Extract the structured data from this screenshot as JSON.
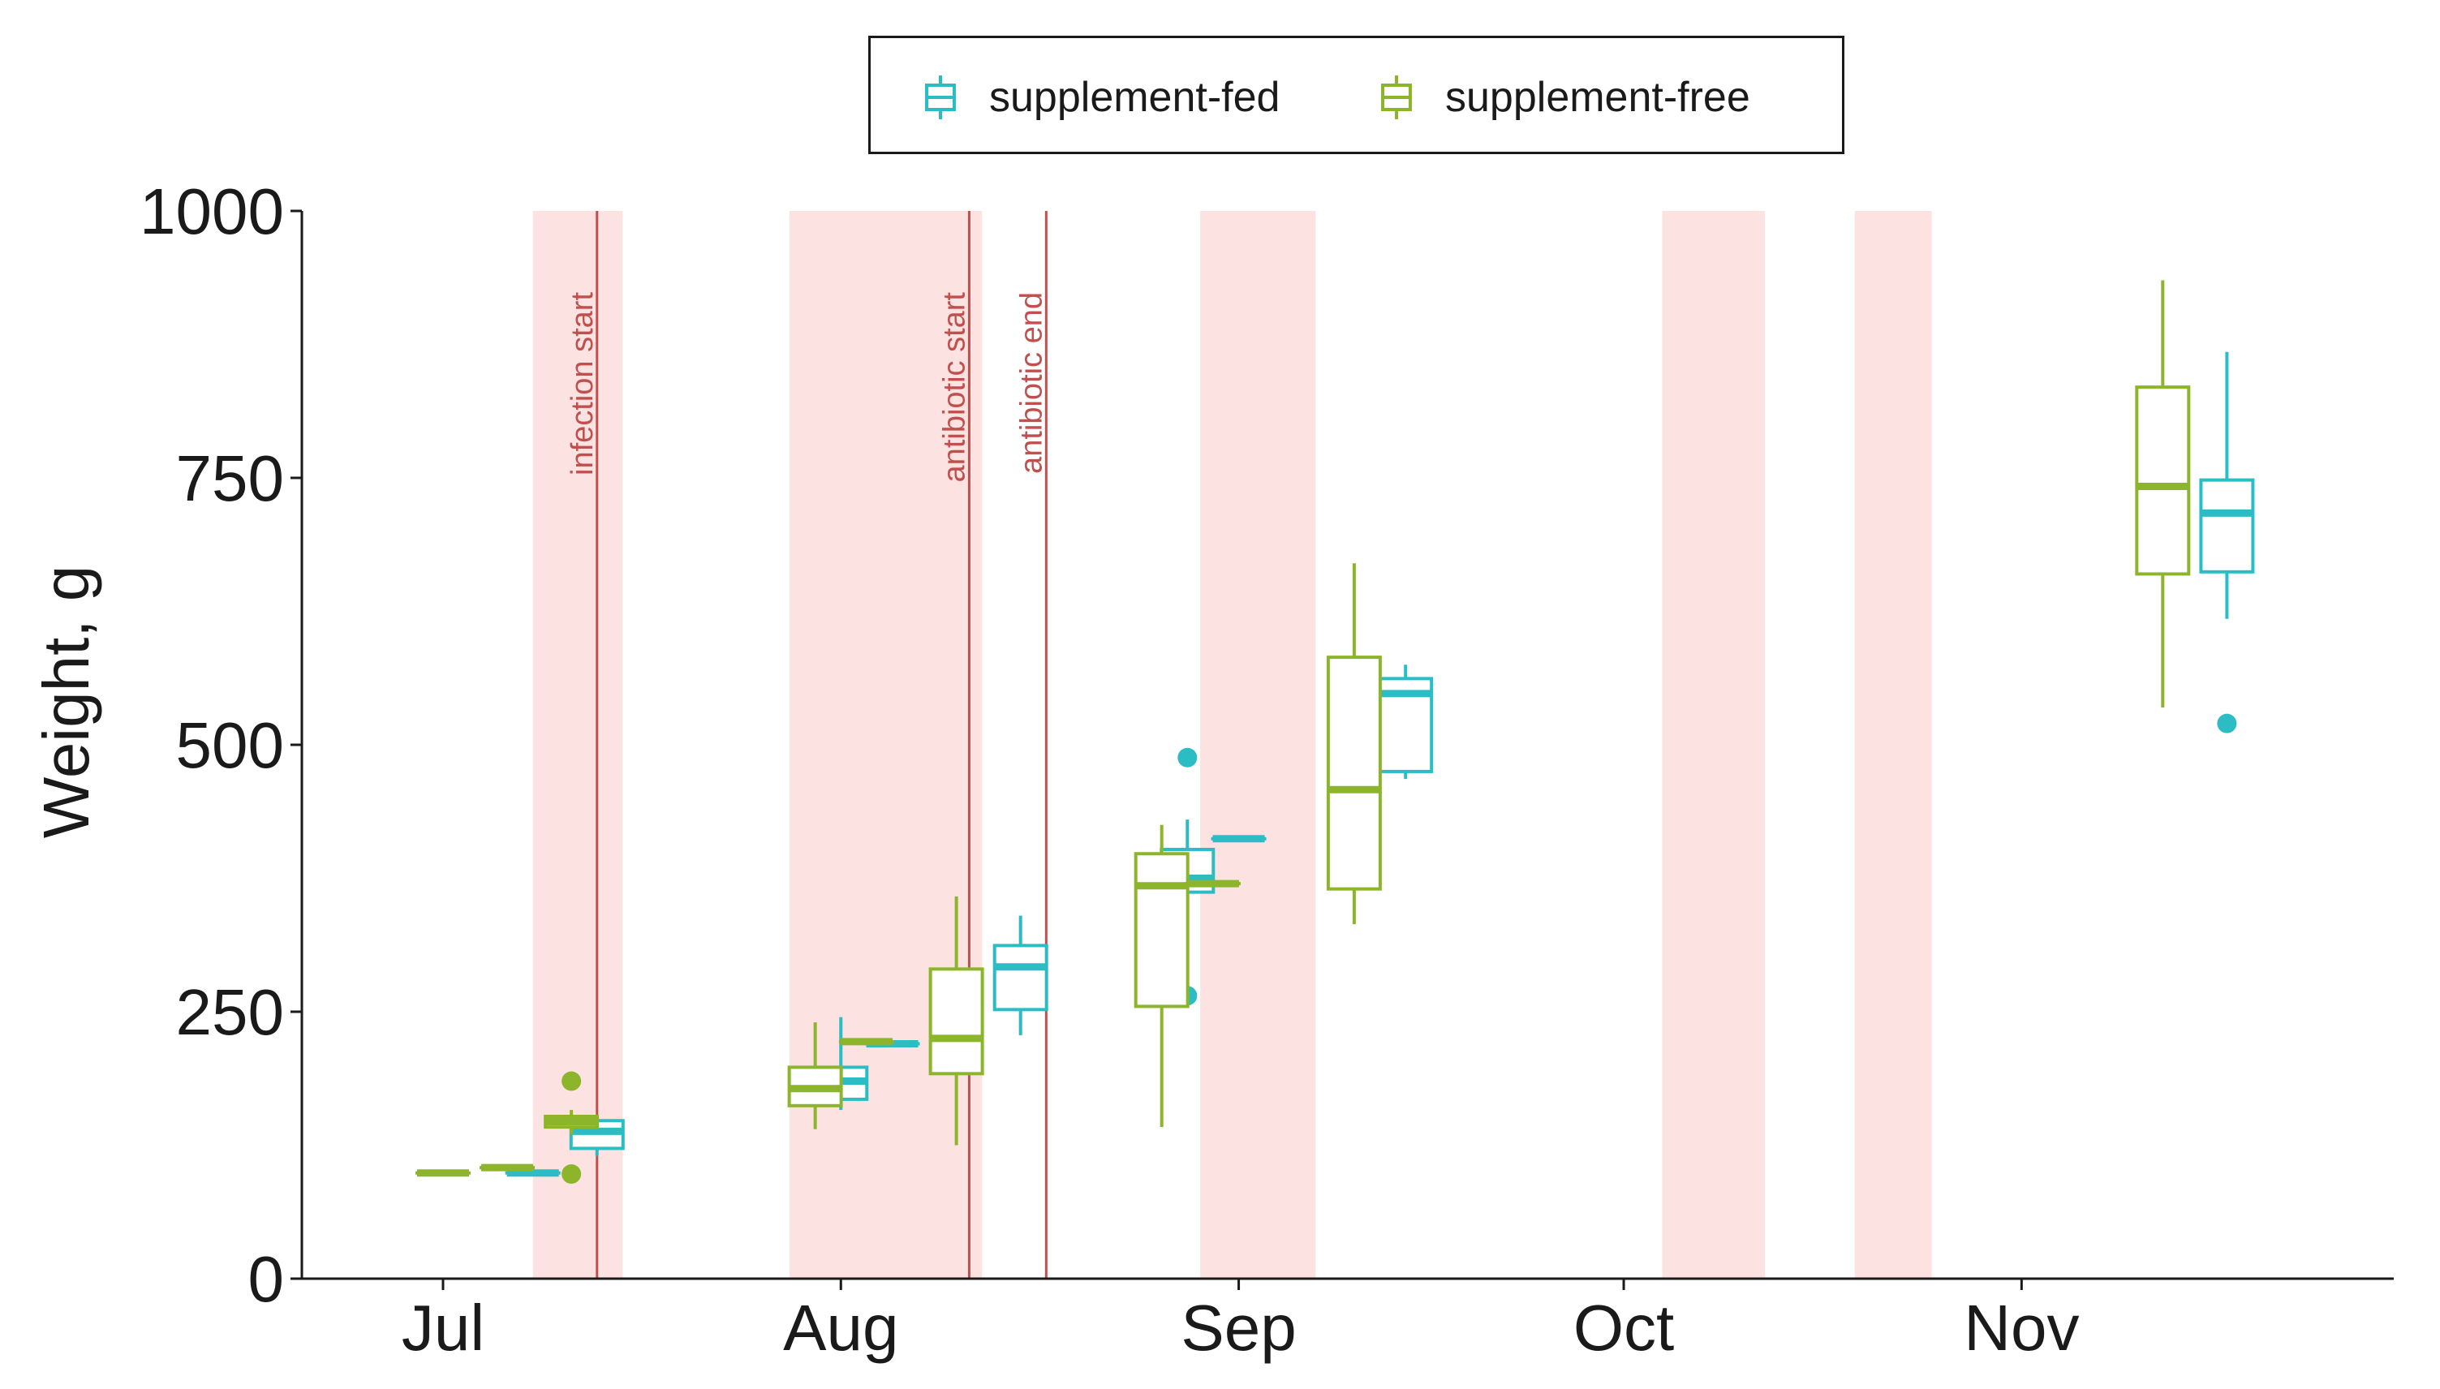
{
  "chart_data": {
    "type": "box",
    "ylabel": "Weight, g",
    "xlabel": "",
    "ylim": [
      0,
      1000
    ],
    "yticks": [
      0,
      250,
      500,
      750,
      1000
    ],
    "x_axis_type": "date",
    "x_range": [
      "2000-06-20",
      "2000-11-30"
    ],
    "x_ticks": [
      {
        "date": "2000-07-01",
        "label": "Jul"
      },
      {
        "date": "2000-08-01",
        "label": "Aug"
      },
      {
        "date": "2000-09-01",
        "label": "Sep"
      },
      {
        "date": "2000-10-01",
        "label": "Oct"
      },
      {
        "date": "2000-11-01",
        "label": "Nov"
      }
    ],
    "series": [
      {
        "name": "supplement-fed",
        "color": "#2cbcc4",
        "boxes": [
          {
            "date": "2000-07-08",
            "min": 99,
            "q1": 99,
            "median": 99,
            "q3": 99,
            "max": 99,
            "outliers": []
          },
          {
            "date": "2000-07-13",
            "min": 115,
            "q1": 122,
            "median": 138,
            "q3": 148,
            "max": 152,
            "outliers": []
          },
          {
            "date": "2000-08-01",
            "min": 158,
            "q1": 168,
            "median": 185,
            "q3": 198,
            "max": 245,
            "outliers": []
          },
          {
            "date": "2000-08-05",
            "min": 220,
            "q1": 220,
            "median": 220,
            "q3": 220,
            "max": 220,
            "outliers": []
          },
          {
            "date": "2000-08-15",
            "min": 228,
            "q1": 252,
            "median": 292,
            "q3": 312,
            "max": 340,
            "outliers": []
          },
          {
            "date": "2000-08-28",
            "min": 348,
            "q1": 362,
            "median": 375,
            "q3": 402,
            "max": 430,
            "outliers": [
              488,
              265
            ]
          },
          {
            "date": "2000-09-01",
            "min": 412,
            "q1": 412,
            "median": 412,
            "q3": 412,
            "max": 412,
            "outliers": []
          },
          {
            "date": "2000-09-14",
            "min": 468,
            "q1": 475,
            "median": 548,
            "q3": 562,
            "max": 575,
            "outliers": []
          },
          {
            "date": "2000-11-17",
            "min": 618,
            "q1": 662,
            "median": 717,
            "q3": 748,
            "max": 868,
            "outliers": [
              520
            ]
          }
        ]
      },
      {
        "name": "supplement-free",
        "color": "#8db52b",
        "boxes": [
          {
            "date": "2000-07-01",
            "min": 99,
            "q1": 99,
            "median": 99,
            "q3": 99,
            "max": 99,
            "outliers": []
          },
          {
            "date": "2000-07-06",
            "min": 104,
            "q1": 104,
            "median": 104,
            "q3": 104,
            "max": 104,
            "outliers": []
          },
          {
            "date": "2000-07-11",
            "min": 135,
            "q1": 142,
            "median": 147,
            "q3": 152,
            "max": 158,
            "outliers": [
              185,
              98
            ]
          },
          {
            "date": "2000-07-30",
            "min": 140,
            "q1": 162,
            "median": 178,
            "q3": 198,
            "max": 240,
            "outliers": []
          },
          {
            "date": "2000-08-03",
            "min": 222,
            "q1": 222,
            "median": 222,
            "q3": 222,
            "max": 222,
            "outliers": []
          },
          {
            "date": "2000-08-10",
            "min": 125,
            "q1": 192,
            "median": 225,
            "q3": 290,
            "max": 358,
            "outliers": []
          },
          {
            "date": "2000-08-26",
            "min": 142,
            "q1": 255,
            "median": 368,
            "q3": 398,
            "max": 425,
            "outliers": []
          },
          {
            "date": "2000-08-30",
            "min": 370,
            "q1": 370,
            "median": 370,
            "q3": 370,
            "max": 370,
            "outliers": []
          },
          {
            "date": "2000-09-10",
            "min": 332,
            "q1": 365,
            "median": 458,
            "q3": 582,
            "max": 670,
            "outliers": []
          },
          {
            "date": "2000-11-12",
            "min": 535,
            "q1": 660,
            "median": 742,
            "q3": 835,
            "max": 935,
            "outliers": []
          }
        ]
      }
    ],
    "shaded_periods": [
      {
        "start": "2000-07-08",
        "end": "2000-07-15",
        "color": "#fde2e2"
      },
      {
        "start": "2000-07-28",
        "end": "2000-08-12",
        "color": "#fde2e2"
      },
      {
        "start": "2000-08-29",
        "end": "2000-09-07",
        "color": "#fde2e2"
      },
      {
        "start": "2000-10-04",
        "end": "2000-10-12",
        "color": "#fde2e2"
      },
      {
        "start": "2000-10-19",
        "end": "2000-10-25",
        "color": "#fde2e2"
      }
    ],
    "vertical_lines": [
      {
        "date": "2000-07-13",
        "label": "infection start",
        "color": "#c0504d"
      },
      {
        "date": "2000-08-11",
        "label": "antibiotic start",
        "color": "#c0504d"
      },
      {
        "date": "2000-08-17",
        "label": "antibiotic end",
        "color": "#c0504d"
      }
    ],
    "legend": {
      "position": "top-center",
      "items": [
        {
          "name": "supplement-fed",
          "color": "#2cbcc4"
        },
        {
          "name": "supplement-free",
          "color": "#8db52b"
        }
      ]
    },
    "grid": false
  }
}
